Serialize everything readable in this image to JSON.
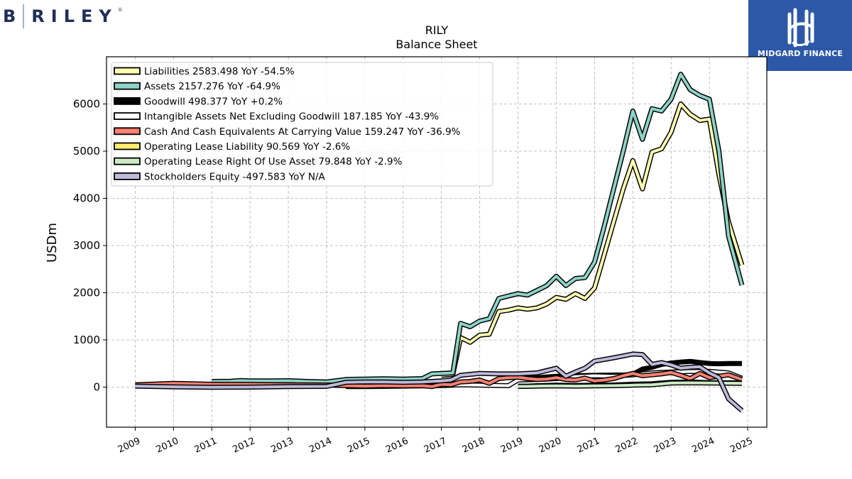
{
  "brand_left": {
    "initial": "B",
    "word": "RILEY",
    "mark": "®"
  },
  "brand_right": {
    "name": "MIDGARD FINANCE",
    "bg": "#2d58a8"
  },
  "chart_data": {
    "type": "line",
    "title": "RILY",
    "subtitle": "Balance  Sheet",
    "ylabel": "USDm",
    "xlabel": "",
    "ylim": [
      -850,
      7000
    ],
    "xlim": [
      2008.25,
      2025.5
    ],
    "yticks": [
      0,
      1000,
      2000,
      3000,
      4000,
      5000,
      6000
    ],
    "xticks": [
      2009,
      2010,
      2011,
      2012,
      2013,
      2014,
      2015,
      2016,
      2017,
      2018,
      2019,
      2020,
      2021,
      2022,
      2023,
      2024,
      2025
    ],
    "grid": true,
    "legend_position": "upper-left",
    "series": [
      {
        "name": "Liabilities",
        "legend_label": "Liabilities  2583.498 YoY -54.5%",
        "color": "#ffffb3",
        "points": [
          [
            2017.0,
            250
          ],
          [
            2017.3,
            270
          ],
          [
            2017.5,
            1050
          ],
          [
            2017.75,
            950
          ],
          [
            2018.0,
            1100
          ],
          [
            2018.25,
            1120
          ],
          [
            2018.5,
            1600
          ],
          [
            2018.75,
            1630
          ],
          [
            2019.0,
            1680
          ],
          [
            2019.25,
            1650
          ],
          [
            2019.5,
            1680
          ],
          [
            2019.75,
            1760
          ],
          [
            2020.0,
            1900
          ],
          [
            2020.25,
            1860
          ],
          [
            2020.5,
            1980
          ],
          [
            2020.75,
            1880
          ],
          [
            2021.0,
            2100
          ],
          [
            2021.25,
            2800
          ],
          [
            2021.5,
            3500
          ],
          [
            2021.75,
            4200
          ],
          [
            2022.0,
            4800
          ],
          [
            2022.25,
            4200
          ],
          [
            2022.5,
            4980
          ],
          [
            2022.75,
            5050
          ],
          [
            2023.0,
            5400
          ],
          [
            2023.25,
            6000
          ],
          [
            2023.5,
            5780
          ],
          [
            2023.75,
            5650
          ],
          [
            2024.0,
            5680
          ],
          [
            2024.25,
            4500
          ],
          [
            2024.5,
            3500
          ],
          [
            2024.85,
            2583.498
          ]
        ]
      },
      {
        "name": "Assets",
        "legend_label": "Assets  2157.276 YoY -64.9%",
        "color": "#8dd3c7",
        "points": [
          [
            2011.0,
            120
          ],
          [
            2011.5,
            125
          ],
          [
            2011.75,
            140
          ],
          [
            2012.0,
            130
          ],
          [
            2012.5,
            130
          ],
          [
            2013.0,
            135
          ],
          [
            2013.5,
            120
          ],
          [
            2014.0,
            110
          ],
          [
            2014.5,
            160
          ],
          [
            2015.0,
            170
          ],
          [
            2015.5,
            175
          ],
          [
            2016.0,
            170
          ],
          [
            2016.5,
            180
          ],
          [
            2016.75,
            280
          ],
          [
            2017.0,
            290
          ],
          [
            2017.3,
            300
          ],
          [
            2017.5,
            1350
          ],
          [
            2017.75,
            1280
          ],
          [
            2018.0,
            1400
          ],
          [
            2018.25,
            1450
          ],
          [
            2018.5,
            1880
          ],
          [
            2018.75,
            1930
          ],
          [
            2019.0,
            1980
          ],
          [
            2019.25,
            1950
          ],
          [
            2019.5,
            2050
          ],
          [
            2019.75,
            2150
          ],
          [
            2020.0,
            2350
          ],
          [
            2020.25,
            2150
          ],
          [
            2020.5,
            2300
          ],
          [
            2020.75,
            2320
          ],
          [
            2021.0,
            2650
          ],
          [
            2021.25,
            3400
          ],
          [
            2021.5,
            4200
          ],
          [
            2021.75,
            5000
          ],
          [
            2022.0,
            5850
          ],
          [
            2022.25,
            5250
          ],
          [
            2022.5,
            5900
          ],
          [
            2022.75,
            5850
          ],
          [
            2023.0,
            6100
          ],
          [
            2023.25,
            6630
          ],
          [
            2023.5,
            6300
          ],
          [
            2023.75,
            6180
          ],
          [
            2024.0,
            6100
          ],
          [
            2024.25,
            5000
          ],
          [
            2024.5,
            3200
          ],
          [
            2024.85,
            2157.276
          ]
        ]
      },
      {
        "name": "Goodwill",
        "legend_label": "Goodwill  498.377 YoY +0.2%",
        "color": "#000000",
        "points": [
          [
            2019.0,
            180
          ],
          [
            2019.5,
            200
          ],
          [
            2020.0,
            230
          ],
          [
            2020.5,
            240
          ],
          [
            2021.0,
            250
          ],
          [
            2021.5,
            255
          ],
          [
            2021.75,
            255
          ],
          [
            2022.0,
            270
          ],
          [
            2022.25,
            380
          ],
          [
            2022.5,
            420
          ],
          [
            2022.75,
            480
          ],
          [
            2023.0,
            510
          ],
          [
            2023.25,
            530
          ],
          [
            2023.5,
            545
          ],
          [
            2023.75,
            520
          ],
          [
            2024.0,
            500
          ],
          [
            2024.25,
            495
          ],
          [
            2024.5,
            500
          ],
          [
            2024.85,
            498.377
          ]
        ]
      },
      {
        "name": "Intangible Assets Net Excluding Goodwill",
        "legend_label": "Intangible Assets Net Excluding Goodwill  187.185 YoY -43.9%",
        "color": "#ffffff",
        "points": [
          [
            2014.5,
            10
          ],
          [
            2015.0,
            12
          ],
          [
            2015.5,
            15
          ],
          [
            2016.0,
            20
          ],
          [
            2016.5,
            25
          ],
          [
            2017.0,
            30
          ],
          [
            2017.5,
            50
          ],
          [
            2018.0,
            40
          ],
          [
            2018.5,
            35
          ],
          [
            2018.75,
            30
          ],
          [
            2019.0,
            150
          ],
          [
            2019.5,
            160
          ],
          [
            2020.0,
            180
          ],
          [
            2020.5,
            220
          ],
          [
            2021.0,
            240
          ],
          [
            2021.5,
            230
          ],
          [
            2022.0,
            260
          ],
          [
            2022.5,
            300
          ],
          [
            2023.0,
            320
          ],
          [
            2023.5,
            330
          ],
          [
            2024.0,
            335
          ],
          [
            2024.5,
            300
          ],
          [
            2024.85,
            187.185
          ]
        ]
      },
      {
        "name": "Cash And Cash Equivalents At Carrying Value",
        "legend_label": "Cash And Cash Equivalents At Carrying Value  159.247 YoY -36.9%",
        "color": "#fb8072",
        "points": [
          [
            2009.0,
            50
          ],
          [
            2010.0,
            80
          ],
          [
            2011.0,
            60
          ],
          [
            2012.0,
            55
          ],
          [
            2013.0,
            50
          ],
          [
            2014.0,
            45
          ],
          [
            2014.5,
            30
          ],
          [
            2015.0,
            20
          ],
          [
            2015.5,
            30
          ],
          [
            2016.0,
            25
          ],
          [
            2016.5,
            30
          ],
          [
            2016.75,
            10
          ],
          [
            2017.0,
            60
          ],
          [
            2017.25,
            50
          ],
          [
            2017.5,
            110
          ],
          [
            2017.75,
            120
          ],
          [
            2018.0,
            150
          ],
          [
            2018.25,
            80
          ],
          [
            2018.5,
            180
          ],
          [
            2018.75,
            200
          ],
          [
            2019.0,
            210
          ],
          [
            2019.25,
            180
          ],
          [
            2019.5,
            160
          ],
          [
            2019.75,
            170
          ],
          [
            2020.0,
            200
          ],
          [
            2020.25,
            160
          ],
          [
            2020.5,
            150
          ],
          [
            2020.75,
            190
          ],
          [
            2021.0,
            130
          ],
          [
            2021.25,
            150
          ],
          [
            2021.5,
            180
          ],
          [
            2021.75,
            240
          ],
          [
            2022.0,
            290
          ],
          [
            2022.25,
            240
          ],
          [
            2022.5,
            260
          ],
          [
            2022.75,
            280
          ],
          [
            2023.0,
            310
          ],
          [
            2023.25,
            250
          ],
          [
            2023.5,
            180
          ],
          [
            2023.75,
            290
          ],
          [
            2024.0,
            200
          ],
          [
            2024.25,
            230
          ],
          [
            2024.5,
            260
          ],
          [
            2024.85,
            159.247
          ]
        ]
      },
      {
        "name": "Operating Lease Liability",
        "legend_label": "Operating Lease Liability  90.569 YoY -2.6%",
        "color": "#ffed6f",
        "points": [
          [
            2019.0,
            20
          ],
          [
            2019.25,
            20
          ],
          [
            2019.5,
            30
          ],
          [
            2020.0,
            40
          ],
          [
            2020.5,
            35
          ],
          [
            2021.0,
            40
          ],
          [
            2021.5,
            45
          ],
          [
            2022.0,
            60
          ],
          [
            2022.5,
            70
          ],
          [
            2023.0,
            100
          ],
          [
            2023.5,
            110
          ],
          [
            2024.0,
            95
          ],
          [
            2024.5,
            92
          ],
          [
            2024.85,
            90.569
          ]
        ]
      },
      {
        "name": "Operating Lease Right Of Use Asset",
        "legend_label": "Operating Lease Right Of Use Asset  79.848 YoY -2.9%",
        "color": "#ccebc5",
        "points": [
          [
            2019.0,
            15
          ],
          [
            2019.25,
            15
          ],
          [
            2019.5,
            20
          ],
          [
            2020.0,
            25
          ],
          [
            2020.5,
            20
          ],
          [
            2021.0,
            25
          ],
          [
            2021.5,
            30
          ],
          [
            2022.0,
            40
          ],
          [
            2022.5,
            50
          ],
          [
            2023.0,
            85
          ],
          [
            2023.5,
            90
          ],
          [
            2024.0,
            85
          ],
          [
            2024.5,
            82
          ],
          [
            2024.85,
            79.848
          ]
        ]
      },
      {
        "name": "Stockholders Equity",
        "legend_label": "Stockholders Equity  -497.583 YoY N/A",
        "color": "#bebada",
        "points": [
          [
            2009.0,
            20
          ],
          [
            2010.0,
            5
          ],
          [
            2011.0,
            -5
          ],
          [
            2012.0,
            0
          ],
          [
            2013.0,
            10
          ],
          [
            2014.0,
            15
          ],
          [
            2014.5,
            100
          ],
          [
            2015.0,
            110
          ],
          [
            2015.5,
            110
          ],
          [
            2016.0,
            100
          ],
          [
            2016.5,
            110
          ],
          [
            2017.0,
            130
          ],
          [
            2017.25,
            150
          ],
          [
            2017.5,
            250
          ],
          [
            2018.0,
            290
          ],
          [
            2018.5,
            280
          ],
          [
            2019.0,
            280
          ],
          [
            2019.5,
            300
          ],
          [
            2020.0,
            400
          ],
          [
            2020.25,
            230
          ],
          [
            2020.5,
            320
          ],
          [
            2020.75,
            400
          ],
          [
            2021.0,
            550
          ],
          [
            2021.5,
            620
          ],
          [
            2022.0,
            700
          ],
          [
            2022.25,
            690
          ],
          [
            2022.5,
            480
          ],
          [
            2022.75,
            520
          ],
          [
            2023.0,
            470
          ],
          [
            2023.25,
            400
          ],
          [
            2023.5,
            420
          ],
          [
            2023.75,
            430
          ],
          [
            2024.0,
            300
          ],
          [
            2024.25,
            200
          ],
          [
            2024.5,
            -250
          ],
          [
            2024.85,
            -497.583
          ]
        ]
      }
    ]
  }
}
